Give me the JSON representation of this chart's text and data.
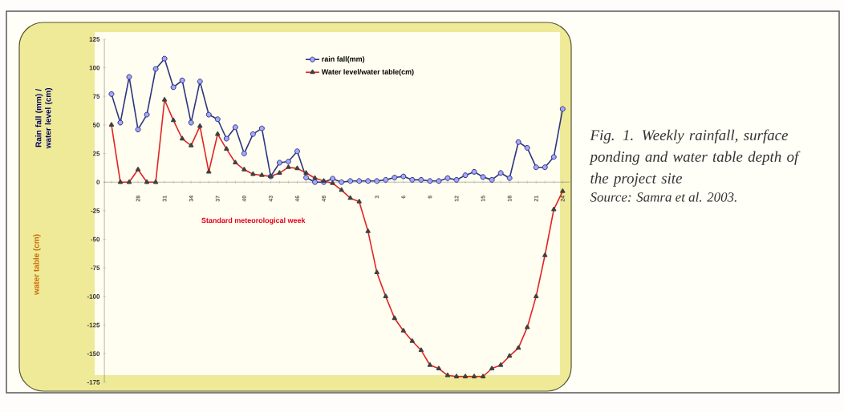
{
  "chart_data": {
    "type": "line",
    "categories": [
      null,
      null,
      null,
      "28",
      null,
      null,
      "31",
      null,
      null,
      "34",
      null,
      null,
      "37",
      null,
      null,
      "40",
      null,
      null,
      "43",
      null,
      null,
      "46",
      null,
      null,
      "49",
      null,
      null,
      null,
      null,
      null,
      "3",
      null,
      null,
      "6",
      null,
      null,
      "9",
      null,
      null,
      "12",
      null,
      null,
      "15",
      null,
      null,
      "18",
      null,
      null,
      "21",
      null,
      null,
      "24"
    ],
    "series": [
      {
        "name": "rain fall(mm)",
        "color": "#2e3580",
        "marker": "circle",
        "values": [
          77,
          52,
          92,
          46,
          59,
          99,
          108,
          83,
          89,
          52,
          88,
          59,
          55,
          38,
          48,
          25,
          42,
          47,
          5,
          17,
          18,
          27,
          4,
          0,
          0,
          3,
          0,
          1,
          1,
          1,
          1,
          2,
          4,
          5,
          2,
          2,
          1,
          1,
          3.5,
          2,
          6,
          9,
          4.5,
          2,
          8,
          3.5,
          35,
          30,
          13,
          13,
          22,
          64
        ]
      },
      {
        "name": "Water level/water table(cm)",
        "color": "#e02424",
        "marker": "triangle",
        "values": [
          50,
          0,
          0,
          11,
          0,
          0,
          72,
          54,
          38,
          32,
          49,
          9,
          42,
          29,
          17,
          11,
          7,
          6,
          5,
          8,
          13,
          12,
          8,
          3.5,
          1,
          -1,
          -7,
          -14,
          -17,
          -43,
          -79,
          -100,
          -119,
          -130,
          -139,
          -147,
          -160,
          -163,
          -169,
          -170,
          -170,
          -170,
          -170,
          -163,
          -160,
          -152,
          -145,
          -127,
          -100,
          -64,
          -24,
          -8
        ]
      }
    ],
    "ylim": [
      -175,
      125
    ],
    "yticks": [
      -175,
      -150,
      -125,
      -100,
      -75,
      -50,
      -25,
      0,
      25,
      50,
      75,
      100,
      125
    ],
    "xlabel": "Standard meteorological week",
    "ylabel": "Rain fall (mm) / water level (cm)",
    "annotations": [
      "Fig. 1. Weekly rainfall, surface ponding and water table depth of the project site",
      "Source: Samra et al. 2003.",
      "water table (cm)"
    ],
    "legend": "top",
    "grid": false,
    "line_style": "solid"
  }
}
